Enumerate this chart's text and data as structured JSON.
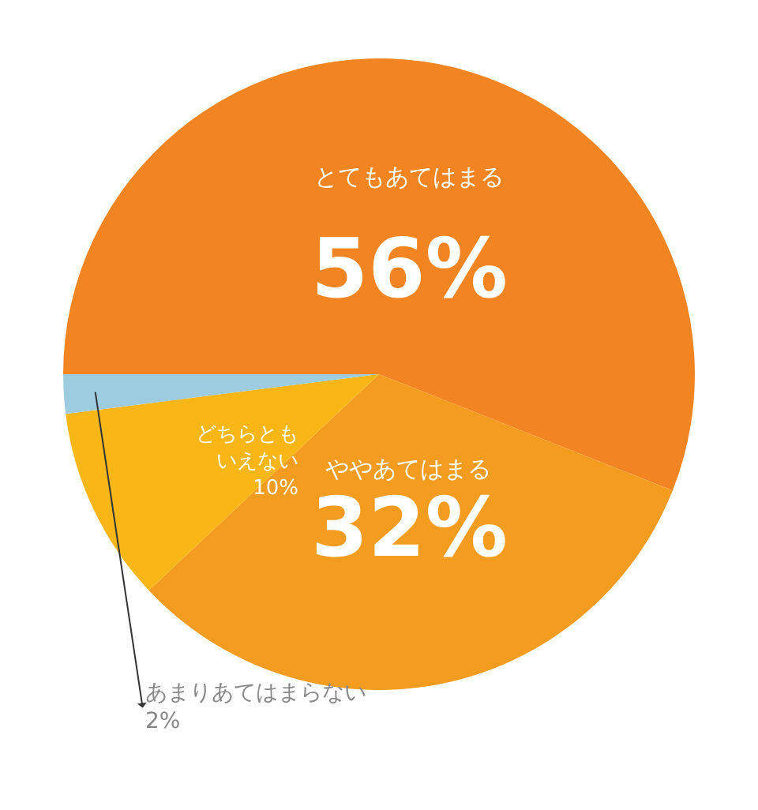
{
  "chart_data": {
    "type": "pie",
    "categories": [
      "とてもあてはまる",
      "ややあてはまる",
      "どちらともいえない",
      "あまりあてはまらない"
    ],
    "values": [
      56,
      32,
      10,
      2
    ],
    "value_labels": [
      "56%",
      "32%",
      "10%",
      "2%"
    ],
    "colors": [
      "#f28522",
      "#f39c20",
      "#f8b617",
      "#9dcbe0"
    ],
    "legend": false
  }
}
